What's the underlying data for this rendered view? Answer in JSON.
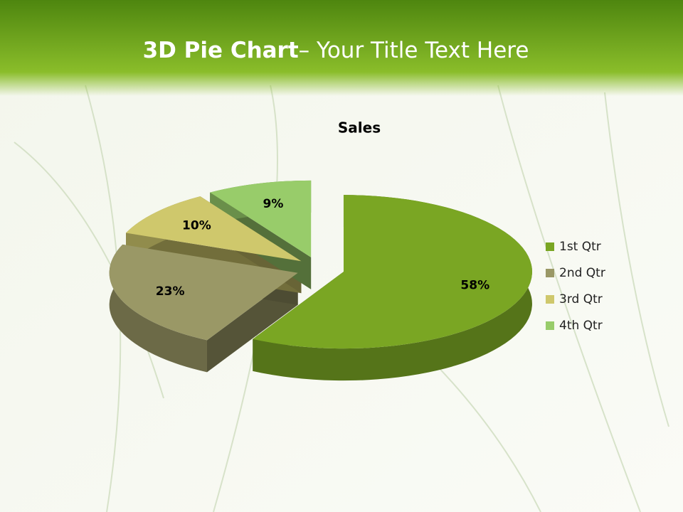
{
  "slide": {
    "title_bold": "3D Pie Chart",
    "title_rest": "– Your Title Text Here"
  },
  "chart_data": {
    "type": "pie",
    "title": "Sales",
    "categories": [
      "1st Qtr",
      "2nd Qtr",
      "3rd Qtr",
      "4th Qtr"
    ],
    "values": [
      58,
      23,
      10,
      9
    ],
    "value_labels": [
      "58%",
      "23%",
      "10%",
      "9%"
    ],
    "colors": [
      "#7aa623",
      "#9a9866",
      "#cfc86c",
      "#98cc6a"
    ],
    "legend": "right"
  }
}
